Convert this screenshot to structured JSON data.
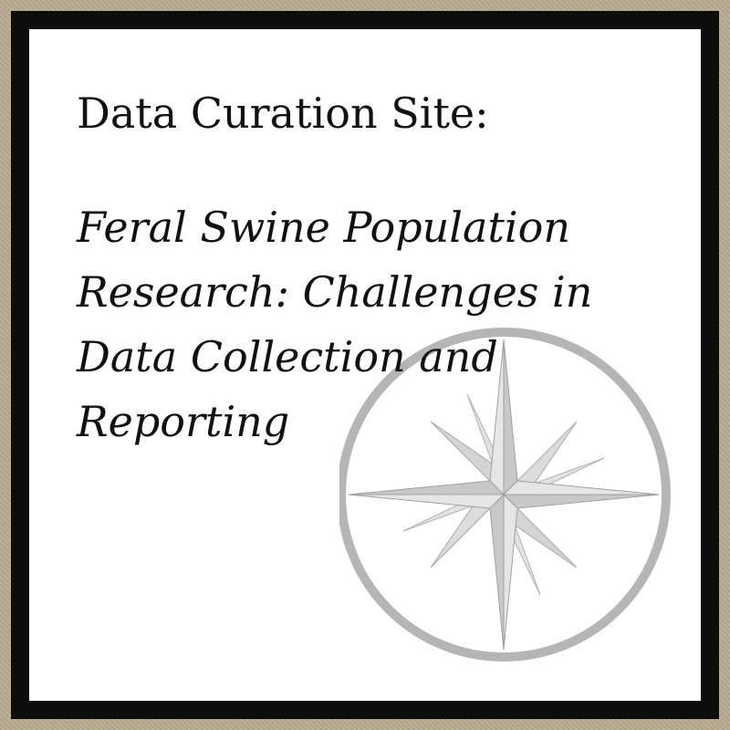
{
  "header": {
    "label": "Data Curation Site:"
  },
  "title": {
    "lines": [
      "Feral Swine Population",
      "Research: Challenges in",
      "Data Collection and",
      "Reporting"
    ]
  },
  "decoration": {
    "watermark_icon": "compass-rose-icon",
    "frame_color": "#b8ac91",
    "border_color": "#0d0d0d",
    "panel_color": "#ffffff",
    "watermark_color": "#b0b0b0"
  }
}
